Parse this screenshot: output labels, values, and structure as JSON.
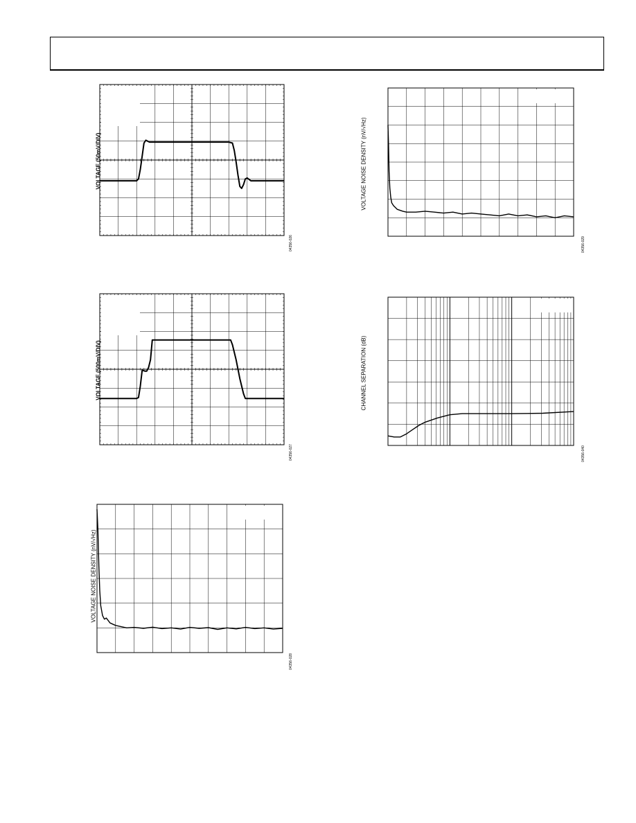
{
  "chart_data": [
    {
      "type": "line",
      "ylabel": "VOLTAGE (50mV/DIV)",
      "figure_id": "04356-026",
      "grid": true,
      "x_divisions": 10,
      "y_divisions": 8,
      "legend_box": "top-left",
      "series": [
        {
          "x": [
            0,
            2,
            2.1,
            2.2,
            2.3,
            2.4,
            2.5,
            2.6,
            2.7,
            2.8,
            3,
            4,
            5,
            6,
            7,
            7.2,
            7.3,
            7.4,
            7.5,
            7.6,
            7.7,
            7.8,
            7.9,
            8,
            8.2,
            8.4,
            8.6,
            9,
            10
          ],
          "y": [
            -1.1,
            -1.1,
            -1.0,
            -0.5,
            0.2,
            0.9,
            1.05,
            1.0,
            0.95,
            0.95,
            0.95,
            0.95,
            0.95,
            0.95,
            0.95,
            0.9,
            0.5,
            -0.1,
            -0.8,
            -1.4,
            -1.5,
            -1.3,
            -1.0,
            -0.95,
            -1.1,
            -1.1,
            -1.1,
            -1.1,
            -1.1
          ]
        }
      ]
    },
    {
      "type": "line",
      "ylabel": "VOLTAGE (500mV/DIV)",
      "figure_id": "04356-027",
      "grid": true,
      "x_divisions": 10,
      "y_divisions": 8,
      "legend_box": "top-left",
      "series": [
        {
          "x": [
            0,
            2,
            2.1,
            2.2,
            2.3,
            2.45,
            2.55,
            2.65,
            2.75,
            2.85,
            3,
            4,
            5,
            6,
            7,
            7.1,
            7.2,
            7.4,
            7.6,
            7.8,
            7.9,
            8.1,
            9,
            10
          ],
          "y": [
            -1.55,
            -1.55,
            -1.5,
            -0.9,
            -0.05,
            -0.1,
            -0.1,
            0.1,
            0.5,
            1.55,
            1.55,
            1.55,
            1.55,
            1.55,
            1.55,
            1.55,
            1.3,
            0.5,
            -0.5,
            -1.3,
            -1.55,
            -1.55,
            -1.55,
            -1.55
          ]
        }
      ]
    },
    {
      "type": "line",
      "ylabel": "VOLTAGE NOISE DENSITY (nV/√Hz)",
      "figure_id": "04356-028",
      "grid": true,
      "x_divisions": 10,
      "y_divisions": 6,
      "legend_box": "top-right",
      "series": [
        {
          "x": [
            0,
            0.05,
            0.1,
            0.15,
            0.2,
            0.3,
            0.4,
            0.5,
            0.7,
            1,
            1.3,
            1.6,
            2,
            2.5,
            3,
            3.5,
            4,
            4.5,
            5,
            5.5,
            6,
            6.5,
            7,
            7.5,
            8,
            8.5,
            9,
            9.5,
            10
          ],
          "y": [
            5.8,
            5.0,
            3.5,
            2.5,
            1.9,
            1.5,
            1.35,
            1.4,
            1.2,
            1.1,
            1.05,
            1.0,
            1.02,
            0.98,
            1.03,
            0.97,
            1.0,
            0.95,
            1.02,
            0.98,
            1.01,
            0.94,
            1.0,
            0.96,
            1.02,
            0.97,
            1.0,
            0.95,
            0.98
          ]
        }
      ]
    },
    {
      "type": "line",
      "ylabel": "VOLTAGE NOISE DENSITY (nV/√Hz)",
      "figure_id": "04356-029",
      "grid": true,
      "x_divisions": 10,
      "y_divisions": 8,
      "legend_box": "top-right",
      "series": [
        {
          "x": [
            0,
            0.03,
            0.06,
            0.1,
            0.15,
            0.2,
            0.3,
            0.5,
            0.8,
            1,
            1.5,
            2,
            2.5,
            3,
            3.5,
            4,
            4.5,
            5,
            5.5,
            6,
            6.5,
            7,
            7.5,
            8,
            8.5,
            9,
            9.5,
            10
          ],
          "y": [
            5.0,
            4.0,
            2.5,
            1.6,
            1.1,
            0.8,
            0.65,
            0.45,
            0.35,
            0.3,
            0.3,
            0.35,
            0.3,
            0.25,
            0.3,
            0.2,
            0.25,
            0.2,
            0.15,
            0.1,
            0.2,
            0.1,
            0.15,
            0.05,
            0.1,
            0.0,
            0.1,
            0.05
          ]
        }
      ]
    },
    {
      "type": "line",
      "ylabel": "CHANNEL SEPARATION (dB)",
      "figure_id": "04356-040",
      "grid": true,
      "x_log_decades": 3,
      "y_divisions": 7,
      "legend_box": "top-right",
      "series": [
        {
          "x": [
            0.0,
            0.1,
            0.2,
            0.3,
            0.4,
            0.5,
            0.6,
            0.8,
            1.0,
            1.2,
            1.5,
            2.0,
            2.5,
            3.0
          ],
          "y": [
            0.45,
            0.4,
            0.4,
            0.55,
            0.75,
            0.95,
            1.1,
            1.3,
            1.45,
            1.5,
            1.5,
            1.5,
            1.52,
            1.6
          ]
        }
      ]
    }
  ]
}
